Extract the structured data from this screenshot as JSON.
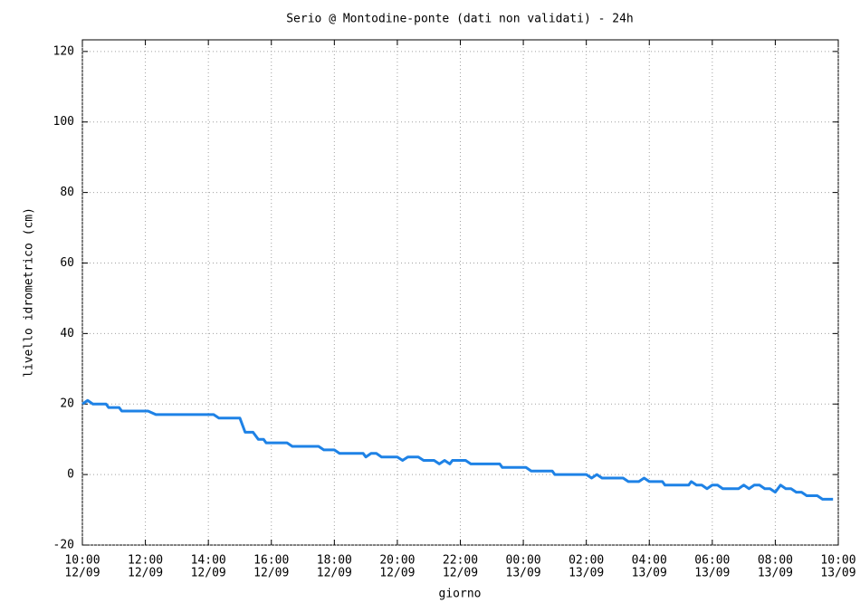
{
  "chart_data": {
    "type": "line",
    "title": "Serio @ Montodine-ponte (dati non validati) - 24h",
    "y_label": "livello idrometrico (cm)",
    "x_label": "giorno",
    "grid": true,
    "ylim": [
      -20,
      123.3
    ],
    "yticks": [
      -20,
      0,
      20,
      40,
      60,
      80,
      100,
      120
    ],
    "xlim": [
      "12/09 10:00",
      "13/09 10:00"
    ],
    "xticks": [
      {
        "value": "12/09 10:00",
        "label": "10:00",
        "sublabel": "12/09"
      },
      {
        "value": "12/09 12:00",
        "label": "12:00",
        "sublabel": "12/09"
      },
      {
        "value": "12/09 14:00",
        "label": "14:00",
        "sublabel": "12/09"
      },
      {
        "value": "12/09 16:00",
        "label": "16:00",
        "sublabel": "12/09"
      },
      {
        "value": "12/09 18:00",
        "label": "18:00",
        "sublabel": "12/09"
      },
      {
        "value": "12/09 20:00",
        "label": "20:00",
        "sublabel": "12/09"
      },
      {
        "value": "12/09 22:00",
        "label": "22:00",
        "sublabel": "12/09"
      },
      {
        "value": "13/09 00:00",
        "label": "00:00",
        "sublabel": "13/09"
      },
      {
        "value": "13/09 02:00",
        "label": "02:00",
        "sublabel": "13/09"
      },
      {
        "value": "13/09 04:00",
        "label": "04:00",
        "sublabel": "13/09"
      },
      {
        "value": "13/09 06:00",
        "label": "06:00",
        "sublabel": "13/09"
      },
      {
        "value": "13/09 08:00",
        "label": "08:00",
        "sublabel": "13/09"
      },
      {
        "value": "13/09 10:00",
        "label": "10:00",
        "sublabel": "13/09"
      }
    ],
    "series": [
      {
        "color": "#1e82e6",
        "x": [
          "12/09 10:00",
          "12/09 10:10",
          "12/09 10:20",
          "12/09 10:45",
          "12/09 10:50",
          "12/09 11:10",
          "12/09 11:15",
          "12/09 12:05",
          "12/09 12:20",
          "12/09 14:10",
          "12/09 14:20",
          "12/09 15:00",
          "12/09 15:10",
          "12/09 15:25",
          "12/09 15:35",
          "12/09 15:45",
          "12/09 15:50",
          "12/09 16:30",
          "12/09 16:40",
          "12/09 17:30",
          "12/09 17:40",
          "12/09 18:00",
          "12/09 18:10",
          "12/09 18:55",
          "12/09 19:00",
          "12/09 19:10",
          "12/09 19:20",
          "12/09 19:30",
          "12/09 20:00",
          "12/09 20:10",
          "12/09 20:20",
          "12/09 20:40",
          "12/09 20:50",
          "12/09 21:10",
          "12/09 21:20",
          "12/09 21:30",
          "12/09 21:40",
          "12/09 21:45",
          "12/09 22:10",
          "12/09 22:20",
          "12/09 23:15",
          "12/09 23:20",
          "13/09 00:05",
          "13/09 00:15",
          "13/09 00:55",
          "13/09 01:00",
          "13/09 02:00",
          "13/09 02:10",
          "13/09 02:20",
          "13/09 02:30",
          "13/09 03:10",
          "13/09 03:20",
          "13/09 03:40",
          "13/09 03:50",
          "13/09 04:00",
          "13/09 04:25",
          "13/09 04:30",
          "13/09 05:15",
          "13/09 05:20",
          "13/09 05:30",
          "13/09 05:40",
          "13/09 05:50",
          "13/09 06:00",
          "13/09 06:10",
          "13/09 06:20",
          "13/09 06:50",
          "13/09 07:00",
          "13/09 07:10",
          "13/09 07:20",
          "13/09 07:30",
          "13/09 07:40",
          "13/09 07:50",
          "13/09 08:00",
          "13/09 08:10",
          "13/09 08:20",
          "13/09 08:30",
          "13/09 08:40",
          "13/09 08:50",
          "13/09 09:00",
          "13/09 09:20",
          "13/09 09:30",
          "13/09 09:50"
        ],
        "values": [
          20,
          21,
          20,
          20,
          19,
          19,
          18,
          18,
          17,
          17,
          16,
          16,
          12,
          12,
          10,
          10,
          9,
          9,
          8,
          8,
          7,
          7,
          6,
          6,
          5,
          6,
          6,
          5,
          5,
          4,
          5,
          5,
          4,
          4,
          3,
          4,
          3,
          4,
          4,
          3,
          3,
          2,
          2,
          1,
          1,
          0,
          0,
          -1,
          0,
          -1,
          -1,
          -2,
          -2,
          -1,
          -2,
          -2,
          -3,
          -3,
          -2,
          -3,
          -3,
          -4,
          -3,
          -3,
          -4,
          -4,
          -3,
          -4,
          -3,
          -3,
          -4,
          -4,
          -5,
          -3,
          -4,
          -4,
          -5,
          -5,
          -6,
          -6,
          -7,
          -7
        ]
      }
    ]
  }
}
